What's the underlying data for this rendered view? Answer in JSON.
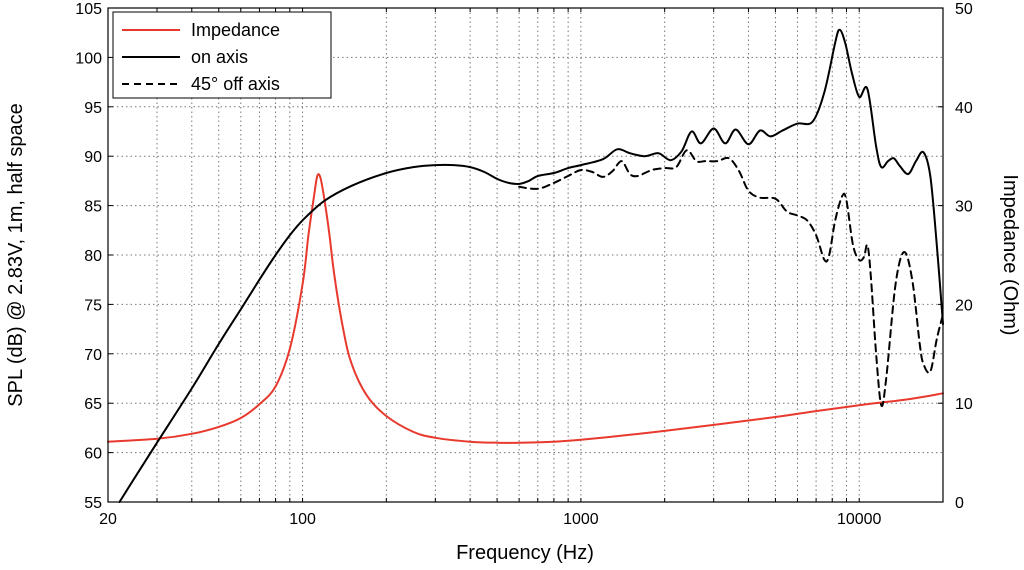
{
  "chart_data": {
    "type": "line",
    "title": "",
    "xlabel": "Frequency (Hz)",
    "ylabel": "SPL (dB) @ 2.83V, 1m, half space",
    "ylabel_right": "Impedance (Ohm)",
    "x_scale": "log",
    "xlim": [
      20,
      20000
    ],
    "ylim": [
      55,
      105
    ],
    "ylim_right": [
      0,
      50
    ],
    "x_ticks": [
      20,
      100,
      1000,
      10000
    ],
    "x_tick_labels": [
      "20",
      "100",
      "1000",
      "10000"
    ],
    "y_ticks": [
      55,
      60,
      65,
      70,
      75,
      80,
      85,
      90,
      95,
      100,
      105
    ],
    "y_tick_labels": [
      "55",
      "60",
      "65",
      "70",
      "75",
      "80",
      "85",
      "90",
      "95",
      "100",
      "105"
    ],
    "y_right_ticks": [
      0,
      10,
      20,
      30,
      40,
      50
    ],
    "y_right_tick_labels": [
      "0",
      "10",
      "20",
      "30",
      "40",
      "50"
    ],
    "grid": true,
    "legend_position": "top-left",
    "series": [
      {
        "name": "Impedance",
        "axis": "right",
        "color": "#e8392e",
        "dash": "solid",
        "points": [
          [
            20,
            6.1
          ],
          [
            30,
            6.4
          ],
          [
            40,
            6.9
          ],
          [
            50,
            7.6
          ],
          [
            60,
            8.5
          ],
          [
            70,
            9.9
          ],
          [
            80,
            11.7
          ],
          [
            90,
            15.5
          ],
          [
            100,
            22.0
          ],
          [
            105,
            27.0
          ],
          [
            110,
            31.0
          ],
          [
            113,
            33.0
          ],
          [
            116,
            32.8
          ],
          [
            120,
            30.5
          ],
          [
            125,
            27.0
          ],
          [
            130,
            23.0
          ],
          [
            140,
            17.5
          ],
          [
            150,
            14.0
          ],
          [
            170,
            10.8
          ],
          [
            200,
            8.7
          ],
          [
            250,
            7.1
          ],
          [
            300,
            6.5
          ],
          [
            400,
            6.1
          ],
          [
            500,
            6.0
          ],
          [
            600,
            6.0
          ],
          [
            800,
            6.1
          ],
          [
            1000,
            6.3
          ],
          [
            1500,
            6.8
          ],
          [
            2000,
            7.2
          ],
          [
            3000,
            7.8
          ],
          [
            5000,
            8.6
          ],
          [
            7000,
            9.2
          ],
          [
            10000,
            9.8
          ],
          [
            15000,
            10.4
          ],
          [
            20000,
            11.0
          ]
        ]
      },
      {
        "name": "on axis",
        "axis": "left",
        "color": "#000000",
        "dash": "solid",
        "points": [
          [
            22,
            55.0
          ],
          [
            25,
            57.5
          ],
          [
            30,
            61.0
          ],
          [
            40,
            66.5
          ],
          [
            50,
            71.0
          ],
          [
            60,
            74.5
          ],
          [
            70,
            77.5
          ],
          [
            80,
            80.0
          ],
          [
            90,
            82.0
          ],
          [
            100,
            83.5
          ],
          [
            120,
            85.5
          ],
          [
            150,
            87.0
          ],
          [
            200,
            88.3
          ],
          [
            250,
            88.9
          ],
          [
            300,
            89.1
          ],
          [
            350,
            89.1
          ],
          [
            400,
            88.9
          ],
          [
            450,
            88.4
          ],
          [
            500,
            87.7
          ],
          [
            550,
            87.3
          ],
          [
            600,
            87.2
          ],
          [
            650,
            87.5
          ],
          [
            700,
            88.0
          ],
          [
            800,
            88.3
          ],
          [
            900,
            88.8
          ],
          [
            1000,
            89.1
          ],
          [
            1200,
            89.7
          ],
          [
            1350,
            90.7
          ],
          [
            1500,
            90.3
          ],
          [
            1700,
            90.0
          ],
          [
            1900,
            90.3
          ],
          [
            2100,
            89.6
          ],
          [
            2300,
            90.5
          ],
          [
            2500,
            92.5
          ],
          [
            2700,
            91.3
          ],
          [
            3000,
            92.8
          ],
          [
            3300,
            91.3
          ],
          [
            3600,
            92.7
          ],
          [
            4000,
            91.2
          ],
          [
            4400,
            92.6
          ],
          [
            4800,
            92.0
          ],
          [
            5300,
            92.6
          ],
          [
            6000,
            93.3
          ],
          [
            6800,
            93.5
          ],
          [
            7500,
            96.5
          ],
          [
            8200,
            101.5
          ],
          [
            8500,
            102.8
          ],
          [
            8900,
            101.5
          ],
          [
            9400,
            98.5
          ],
          [
            10000,
            96.0
          ],
          [
            10700,
            96.8
          ],
          [
            11500,
            91.0
          ],
          [
            12000,
            88.9
          ],
          [
            12700,
            89.5
          ],
          [
            13300,
            89.8
          ],
          [
            14000,
            89.0
          ],
          [
            15000,
            88.2
          ],
          [
            16000,
            89.5
          ],
          [
            17000,
            90.4
          ],
          [
            18000,
            88.0
          ],
          [
            19000,
            81.0
          ],
          [
            20000,
            73.0
          ]
        ]
      },
      {
        "name": "45° off axis",
        "axis": "left",
        "color": "#000000",
        "dash": "dashed",
        "points": [
          [
            600,
            86.9
          ],
          [
            700,
            86.7
          ],
          [
            800,
            87.3
          ],
          [
            900,
            88.0
          ],
          [
            1000,
            88.6
          ],
          [
            1100,
            88.4
          ],
          [
            1200,
            87.9
          ],
          [
            1300,
            88.5
          ],
          [
            1400,
            89.5
          ],
          [
            1500,
            88.2
          ],
          [
            1600,
            88.0
          ],
          [
            1800,
            88.6
          ],
          [
            2000,
            88.8
          ],
          [
            2200,
            88.9
          ],
          [
            2400,
            90.6
          ],
          [
            2600,
            89.5
          ],
          [
            2800,
            89.5
          ],
          [
            3100,
            89.5
          ],
          [
            3400,
            89.8
          ],
          [
            3700,
            88.5
          ],
          [
            4000,
            86.5
          ],
          [
            4400,
            85.8
          ],
          [
            5000,
            85.7
          ],
          [
            5500,
            84.4
          ],
          [
            6000,
            84.0
          ],
          [
            6500,
            83.5
          ],
          [
            7000,
            82.0
          ],
          [
            7500,
            79.5
          ],
          [
            7800,
            80.0
          ],
          [
            8200,
            83.5
          ],
          [
            8700,
            86.0
          ],
          [
            9000,
            85.5
          ],
          [
            9500,
            81.0
          ],
          [
            10000,
            79.5
          ],
          [
            10400,
            79.8
          ],
          [
            10700,
            81.0
          ],
          [
            11000,
            78.0
          ],
          [
            11500,
            70.0
          ],
          [
            12000,
            64.8
          ],
          [
            12500,
            67.5
          ],
          [
            13500,
            77.0
          ],
          [
            14500,
            80.3
          ],
          [
            15500,
            77.5
          ],
          [
            16500,
            71.0
          ],
          [
            17000,
            69.0
          ],
          [
            18000,
            68.2
          ],
          [
            19000,
            71.5
          ],
          [
            20000,
            74.0
          ]
        ]
      }
    ]
  }
}
